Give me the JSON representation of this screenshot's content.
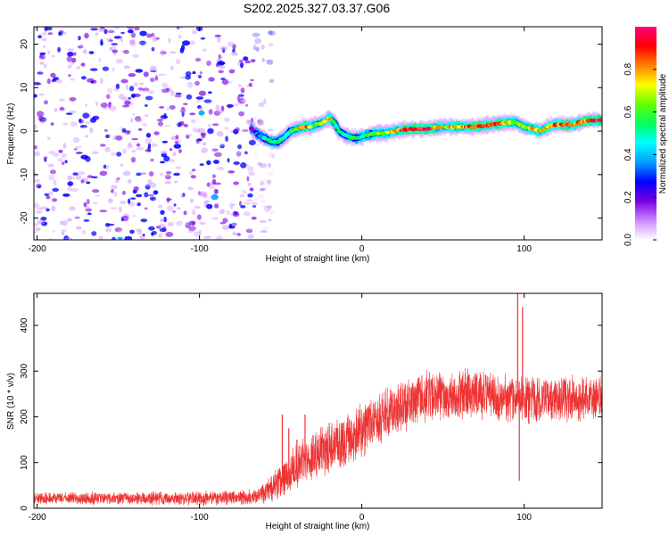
{
  "title": "S202.2025.327.03.37.G06",
  "chart_data": [
    {
      "type": "heatmap",
      "name": "spectrogram",
      "xlabel": "Height of straight line (km)",
      "ylabel": "Frequency (Hz)",
      "xlim": [
        -202,
        148
      ],
      "ylim": [
        -25,
        24
      ],
      "xticks": [
        -200,
        -100,
        0,
        100
      ],
      "yticks": [
        -20,
        -10,
        0,
        10,
        20
      ],
      "colorbar": {
        "label": "Normalized spectral amplitude",
        "range": [
          0,
          1
        ],
        "ticks": [
          0.0,
          0.2,
          0.4,
          0.6,
          0.8
        ],
        "colors": [
          "#ffffff",
          "#cc88ff",
          "#7a00e0",
          "#0000ff",
          "#00a0ff",
          "#00ffff",
          "#00ff60",
          "#60ff00",
          "#ffff00",
          "#ff8000",
          "#ff0000",
          "#ff0080"
        ]
      },
      "noise_region_km": [
        -202,
        -66
      ],
      "signal_track": {
        "x": [
          -68,
          -63,
          -58,
          -55,
          -52,
          -48,
          -44,
          -40,
          -36,
          -32,
          -28,
          -24,
          -20,
          -17,
          -14,
          -10,
          -6,
          -2,
          2,
          8,
          14,
          20,
          30,
          40,
          50,
          60,
          70,
          80,
          90,
          95,
          100,
          105,
          110,
          115,
          120,
          130,
          140,
          148
        ],
        "y": [
          0.5,
          -1,
          -2,
          -2.5,
          -2.5,
          -1.5,
          0,
          0.5,
          1,
          1,
          1.5,
          2,
          3,
          2,
          0,
          -1,
          -1.5,
          -1.5,
          -1,
          -0.5,
          -0.5,
          0,
          0.5,
          0.5,
          1,
          1,
          1,
          1.5,
          2,
          2,
          1,
          0.5,
          0,
          1,
          1.5,
          1.5,
          2.5,
          2.5
        ],
        "amplitude": [
          0.15,
          0.35,
          0.5,
          0.55,
          0.5,
          0.45,
          0.5,
          0.7,
          0.85,
          0.8,
          0.6,
          0.65,
          0.8,
          0.55,
          0.5,
          0.45,
          0.6,
          0.5,
          0.55,
          0.6,
          0.65,
          0.8,
          0.9,
          0.95,
          0.7,
          0.8,
          0.85,
          0.9,
          0.75,
          0.6,
          0.65,
          0.8,
          0.7,
          0.75,
          0.85,
          0.8,
          0.9,
          0.95
        ]
      }
    },
    {
      "type": "line",
      "name": "snr",
      "xlabel": "Height of straight line (km)",
      "ylabel": "SNR (10 * v/v)",
      "xlim": [
        -202,
        148
      ],
      "ylim": [
        0,
        470
      ],
      "xticks": [
        -200,
        -100,
        0,
        100
      ],
      "yticks": [
        0,
        100,
        200,
        300,
        400
      ],
      "color": "#ee3333",
      "trend": {
        "x": [
          -202,
          -100,
          -65,
          -55,
          -45,
          -40,
          -30,
          -20,
          -10,
          0,
          10,
          20,
          30,
          40,
          60,
          80,
          95,
          100,
          120,
          148
        ],
        "y": [
          22,
          22,
          25,
          45,
          75,
          95,
          115,
          130,
          145,
          170,
          195,
          215,
          230,
          245,
          250,
          245,
          240,
          235,
          240,
          238
        ]
      },
      "noise_amplitude": {
        "x": [
          -202,
          -65,
          -40,
          0,
          40,
          148
        ],
        "y": [
          14,
          18,
          55,
          65,
          60,
          55
        ]
      },
      "spikes": [
        {
          "x": -49,
          "y": 205
        },
        {
          "x": -45,
          "y": 175
        },
        {
          "x": -40,
          "y": 150
        },
        {
          "x": -35,
          "y": 205
        },
        {
          "x": -30,
          "y": 160
        },
        {
          "x": -27,
          "y": 150
        },
        {
          "x": 96,
          "y": 470
        },
        {
          "x": 97,
          "y": 60
        },
        {
          "x": 99,
          "y": 440
        }
      ]
    }
  ]
}
